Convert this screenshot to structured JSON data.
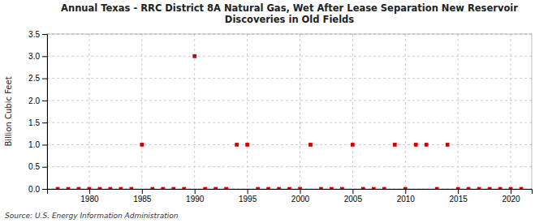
{
  "chart_data": {
    "type": "scatter",
    "title": "Annual Texas - RRC District 8A Natural Gas, Wet After Lease Separation New Reservoir\nDiscoveries in Old Fields",
    "y_label": "Billion Cubic Feet",
    "annotations": [
      "Source: U.S. Energy Information Administration"
    ],
    "x": [
      1977,
      1978,
      1979,
      1980,
      1981,
      1982,
      1983,
      1984,
      1985,
      1986,
      1987,
      1988,
      1989,
      1990,
      1991,
      1992,
      1993,
      1994,
      1995,
      1996,
      1997,
      1998,
      1999,
      2000,
      2001,
      2002,
      2003,
      2004,
      2005,
      2006,
      2007,
      2008,
      2009,
      2010,
      2011,
      2012,
      2013,
      2014,
      2015,
      2016,
      2017,
      2018,
      2019,
      2020,
      2021
    ],
    "values": [
      0.0,
      0.0,
      0.0,
      0.0,
      0.0,
      0.0,
      0.0,
      0.0,
      1.0,
      0.0,
      0.0,
      0.0,
      0.0,
      3.0,
      0.0,
      0.0,
      0.0,
      1.0,
      1.0,
      0.0,
      0.0,
      0.0,
      0.0,
      0.0,
      1.0,
      0.0,
      0.0,
      0.0,
      1.0,
      0.0,
      0.0,
      0.0,
      1.0,
      0.0,
      1.0,
      1.0,
      0.0,
      1.0,
      0.0,
      0.0,
      0.0,
      0.0,
      0.0,
      0.0,
      0.0
    ],
    "color": "#cc0000",
    "marker": "square",
    "xlim": [
      1976,
      2022
    ],
    "xticks": [
      1980,
      1985,
      1990,
      1995,
      2000,
      2005,
      2010,
      2015,
      2020
    ],
    "ylim": [
      0.0,
      3.5
    ],
    "yticks": [
      {
        "value": 0.0,
        "label": "0.0"
      },
      0.5,
      {
        "value": 1.0,
        "label": "1.0"
      },
      1.5,
      {
        "value": 2.0,
        "label": "2.0"
      },
      2.5,
      {
        "value": 3.0,
        "label": "3.0"
      },
      3.5
    ],
    "grid": true
  }
}
